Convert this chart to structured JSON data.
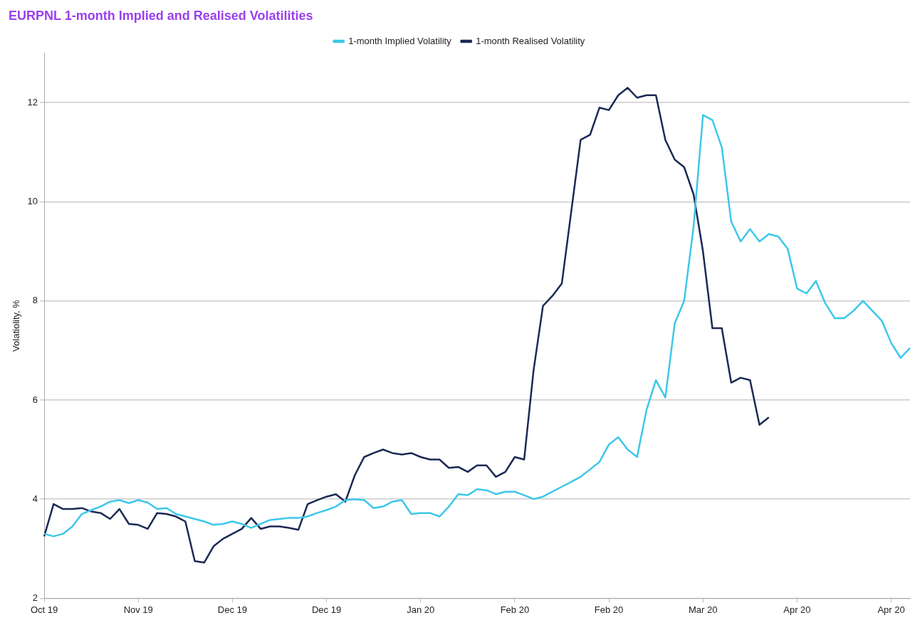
{
  "chart_data": {
    "type": "line",
    "title": "EURPNL 1-month Implied and Realised Volatilities",
    "ylabel": "Volatiolity, %",
    "categories": [
      "Oct 19",
      null,
      null,
      null,
      null,
      null,
      null,
      null,
      null,
      null,
      "Nov 19",
      null,
      null,
      null,
      null,
      null,
      null,
      null,
      null,
      null,
      "Dec 19",
      null,
      null,
      null,
      null,
      null,
      null,
      null,
      null,
      null,
      "Dec 19",
      null,
      null,
      null,
      null,
      null,
      null,
      null,
      null,
      null,
      "Jan 20",
      null,
      null,
      null,
      null,
      null,
      null,
      null,
      null,
      null,
      "Feb 20",
      null,
      null,
      null,
      null,
      null,
      null,
      null,
      null,
      null,
      "Feb 20",
      null,
      null,
      null,
      null,
      null,
      null,
      null,
      null,
      null,
      "Mar 20",
      null,
      null,
      null,
      null,
      null,
      null,
      null,
      null,
      null,
      "Apr 20",
      null,
      null,
      null,
      null,
      null,
      null,
      null,
      null,
      null,
      "Apr 20",
      null,
      null
    ],
    "series": [
      {
        "name": "1-month Implied Volatility",
        "color": "#3cc8ea",
        "values": [
          3.3,
          3.25,
          3.3,
          3.45,
          3.7,
          3.78,
          3.85,
          3.95,
          3.98,
          3.92,
          3.98,
          3.93,
          3.8,
          3.82,
          3.7,
          3.65,
          3.6,
          3.55,
          3.48,
          3.5,
          3.55,
          3.5,
          3.42,
          3.5,
          3.58,
          3.6,
          3.62,
          3.62,
          3.65,
          3.72,
          3.78,
          3.85,
          3.98,
          4.0,
          3.98,
          3.82,
          3.85,
          3.95,
          3.98,
          3.7,
          3.72,
          3.72,
          3.65,
          3.85,
          4.1,
          4.08,
          4.2,
          4.18,
          4.1,
          4.15,
          4.15,
          4.08,
          4.0,
          4.05,
          4.15,
          4.25,
          4.35,
          4.45,
          4.6,
          4.75,
          5.1,
          5.25,
          5.0,
          4.85,
          5.8,
          6.4,
          6.05,
          7.55,
          8.0,
          9.5,
          11.75,
          11.65,
          11.1,
          9.6,
          9.2,
          9.45,
          9.2,
          9.35,
          9.3,
          9.05,
          8.25,
          8.15,
          8.4,
          7.95,
          7.65,
          7.65,
          7.8,
          8.0,
          7.8,
          7.6,
          7.15,
          6.85,
          7.05
        ]
      },
      {
        "name": "1-month Realised Volatility",
        "color": "#1b2a55",
        "values": [
          3.25,
          3.9,
          3.8,
          3.8,
          3.82,
          3.75,
          3.72,
          3.6,
          3.8,
          3.5,
          3.48,
          3.4,
          3.72,
          3.7,
          3.65,
          3.55,
          2.75,
          2.72,
          3.05,
          3.2,
          3.3,
          3.4,
          3.62,
          3.4,
          3.45,
          3.45,
          3.42,
          3.38,
          3.9,
          3.98,
          4.05,
          4.1,
          3.95,
          4.48,
          4.85,
          4.93,
          5.0,
          4.93,
          4.9,
          4.93,
          4.85,
          4.8,
          4.8,
          4.63,
          4.65,
          4.55,
          4.68,
          4.68,
          4.45,
          4.55,
          4.85,
          4.8,
          6.6,
          7.9,
          8.1,
          8.35,
          9.8,
          11.25,
          11.35,
          11.9,
          11.85,
          12.15,
          12.3,
          12.1,
          12.15,
          12.15,
          11.25,
          10.85,
          10.7,
          10.15,
          9.0,
          7.45,
          7.45,
          6.35,
          6.45,
          6.4,
          5.5,
          5.65,
          null,
          null,
          null,
          null,
          null,
          null,
          null,
          null,
          null,
          null,
          null,
          null,
          null,
          null,
          null
        ]
      }
    ],
    "ylim": [
      2,
      13
    ],
    "yticks": [
      2,
      4,
      6,
      8,
      10,
      12
    ],
    "grid": "y",
    "legend": "top",
    "marker": "none",
    "line_style": "solid"
  }
}
